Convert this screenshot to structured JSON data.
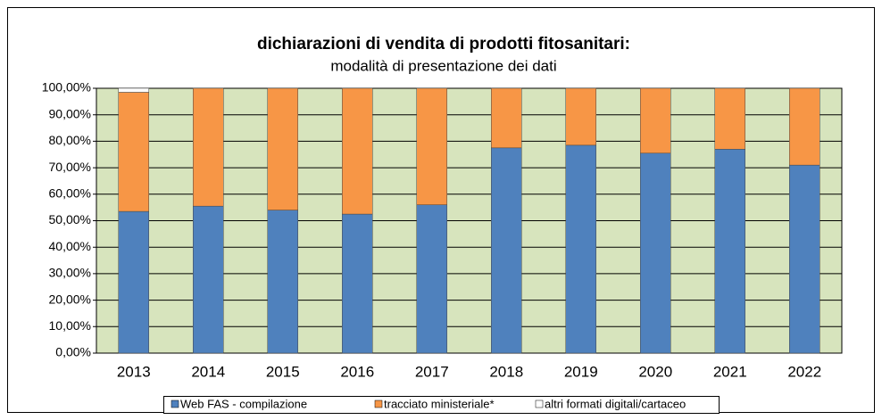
{
  "chart_data": {
    "type": "stacked_bar",
    "title": "dichiarazioni di vendita di prodotti fitosanitari:",
    "subtitle": "modalità di presentazione dei dati",
    "categories": [
      "2013",
      "2014",
      "2015",
      "2016",
      "2017",
      "2018",
      "2019",
      "2020",
      "2021",
      "2022"
    ],
    "series": [
      {
        "name": "Web FAS - compilazione",
        "color": "#4f81bd",
        "values": [
          53.5,
          55.5,
          54,
          52.5,
          56,
          77.5,
          78.5,
          75.5,
          77,
          71
        ]
      },
      {
        "name": "tracciato ministeriale*",
        "color": "#f79646",
        "values": [
          45,
          44.5,
          46,
          47.5,
          44,
          22.5,
          21.5,
          24.5,
          23,
          29
        ]
      },
      {
        "name": "altri formati digitali/cartaceo",
        "color": "#ffffff",
        "values": [
          1.5,
          0,
          0,
          0,
          0,
          0,
          0,
          0,
          0,
          0
        ]
      }
    ],
    "ylim": [
      0,
      100
    ],
    "yticks": [
      {
        "value": 0,
        "label": "0,00%"
      },
      {
        "value": 10,
        "label": "10,00%"
      },
      {
        "value": 20,
        "label": "20,00%"
      },
      {
        "value": 30,
        "label": "30,00%"
      },
      {
        "value": 40,
        "label": "40,00%"
      },
      {
        "value": 50,
        "label": "50,00%"
      },
      {
        "value": 60,
        "label": "60,00%"
      },
      {
        "value": 70,
        "label": "70,00%"
      },
      {
        "value": 80,
        "label": "80,00%"
      },
      {
        "value": 90,
        "label": "90,00%"
      },
      {
        "value": 100,
        "label": "100,00%"
      }
    ],
    "grid": true,
    "plot_background": "#d7e4bd",
    "legend": "bottom"
  }
}
